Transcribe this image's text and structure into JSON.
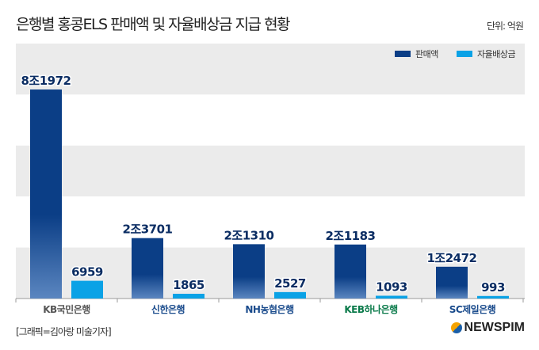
{
  "title": "은행별 홍콩ELS 판매액 및 자율배상금 지급 현황",
  "unit": "단위: 억원",
  "credit": "[그래픽=김아랑 미술기자]",
  "brand": "NEWSPIM",
  "chart_data": {
    "type": "bar",
    "categories": [
      "KB국민은행",
      "신한은행",
      "NH농협은행",
      "KEB하나은행",
      "SC제일은행"
    ],
    "series": [
      {
        "name": "판매액",
        "color": "#0b3e86",
        "values": [
          81972,
          23701,
          21310,
          21183,
          12472
        ],
        "labels": [
          "8조1972",
          "2조3701",
          "2조1310",
          "2조1183",
          "1조2472"
        ]
      },
      {
        "name": "자율배상금",
        "color": "#0aa2e6",
        "values": [
          6959,
          1865,
          2527,
          1093,
          993
        ],
        "labels": [
          "6959",
          "1865",
          "2527",
          "1093",
          "993"
        ]
      }
    ],
    "ylim": [
      0,
      100000
    ],
    "legend": "top-right"
  }
}
